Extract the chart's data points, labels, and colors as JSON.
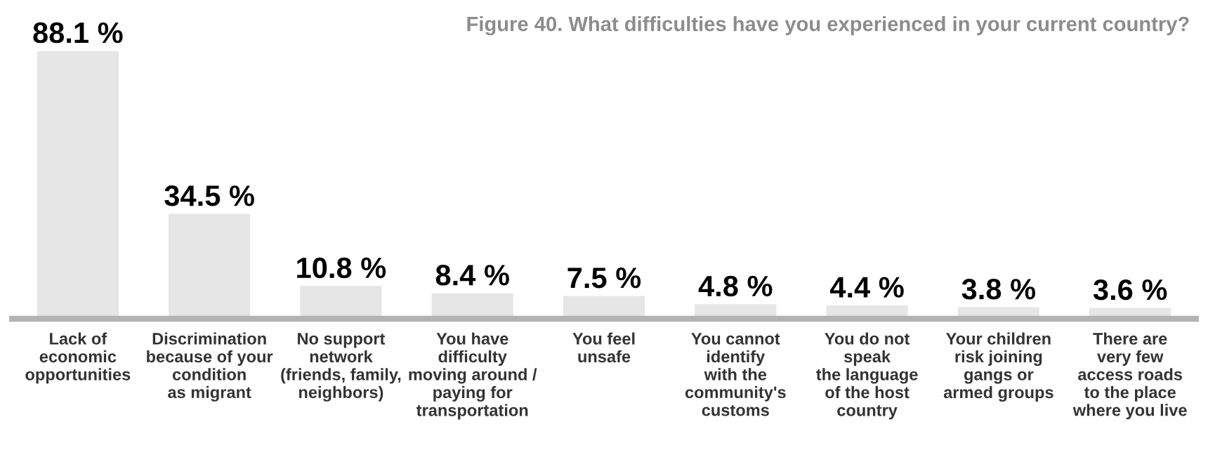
{
  "chart_data": {
    "type": "bar",
    "title": "Figure 40. What difficulties have you experienced in your current country?",
    "categories": [
      "Lack of\neconomic\nopportunities",
      "Discrimination\nbecause of your\ncondition\nas migrant",
      "No support\nnetwork\n(friends, family,\nneighbors)",
      "You have\ndifficulty\nmoving around /\npaying for\ntransportation",
      "You feel\nunsafe",
      "You cannot\nidentify\nwith the\ncommunity's\ncustoms",
      "You do not\nspeak\nthe language\nof the host\ncountry",
      "Your children\nrisk joining\ngangs or\narmed groups",
      "There are\nvery few\naccess roads\nto the place\nwhere you live"
    ],
    "values": [
      88.1,
      34.5,
      10.8,
      8.4,
      7.5,
      4.8,
      4.4,
      3.8,
      3.6
    ],
    "value_labels": [
      "88.1 %",
      "34.5 %",
      "10.8 %",
      "8.4 %",
      "7.5 %",
      "4.8 %",
      "4.4 %",
      "3.8 %",
      "3.6 %"
    ],
    "color": "#e6e6e6",
    "grid": false,
    "legend": false
  }
}
